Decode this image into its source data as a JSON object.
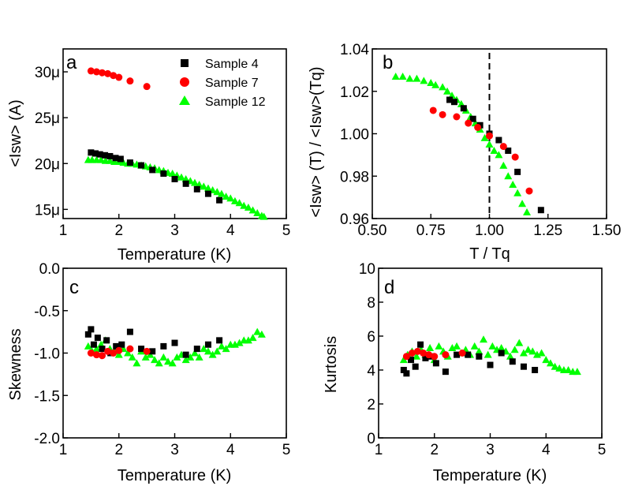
{
  "colors": {
    "sample4": "#000000",
    "sample7": "#ff0000",
    "sample12": "#00ff00",
    "axis": "#000000"
  },
  "chart_data": [
    {
      "id": "a",
      "type": "scatter",
      "panel_label": "a",
      "xlabel": "Temperature (K)",
      "ylabel": "<Isw> (A)",
      "xlim": [
        1,
        5
      ],
      "ylim": [
        14.0,
        32.5
      ],
      "xticks": [
        1,
        2,
        3,
        4,
        5
      ],
      "xtick_labels": [
        "1",
        "2",
        "3",
        "4",
        "5"
      ],
      "yticks": [
        15,
        20,
        25,
        30
      ],
      "ytick_labels": [
        "15μ",
        "20μ",
        "25μ",
        "30μ"
      ],
      "legend": [
        "Sample 4",
        "Sample 7",
        "Sample 12"
      ],
      "legend_position": "top-right",
      "series": [
        {
          "name": "Sample 4",
          "marker": "square",
          "color": "#000000",
          "x": [
            1.5,
            1.58,
            1.66,
            1.75,
            1.84,
            1.94,
            2.03,
            2.2,
            2.4,
            2.6,
            2.8,
            3.0,
            3.2,
            3.4,
            3.6,
            3.8
          ],
          "y": [
            21.2,
            21.1,
            21.0,
            20.9,
            20.8,
            20.6,
            20.5,
            20.1,
            19.8,
            19.3,
            18.9,
            18.3,
            17.8,
            17.2,
            16.7,
            16.0
          ]
        },
        {
          "name": "Sample 7",
          "marker": "circle",
          "color": "#ff0000",
          "x": [
            1.5,
            1.6,
            1.7,
            1.8,
            1.9,
            2.0,
            2.2,
            2.5
          ],
          "y": [
            30.1,
            30.0,
            29.9,
            29.8,
            29.6,
            29.4,
            29.0,
            28.4
          ]
        },
        {
          "name": "Sample 12",
          "marker": "triangle",
          "color": "#00ff00",
          "x": [
            1.45,
            1.52,
            1.6,
            1.68,
            1.76,
            1.84,
            1.92,
            2.0,
            2.08,
            2.16,
            2.24,
            2.32,
            2.4,
            2.48,
            2.56,
            2.64,
            2.72,
            2.8,
            2.88,
            2.96,
            3.04,
            3.12,
            3.2,
            3.28,
            3.36,
            3.44,
            3.52,
            3.6,
            3.68,
            3.76,
            3.84,
            3.92,
            4.0,
            4.08,
            4.16,
            4.24,
            4.32,
            4.4,
            4.48,
            4.56,
            4.6
          ],
          "y": [
            20.4,
            20.4,
            20.4,
            20.4,
            20.3,
            20.3,
            20.2,
            20.2,
            20.1,
            20.0,
            20.0,
            19.9,
            19.8,
            19.7,
            19.6,
            19.5,
            19.3,
            19.2,
            19.0,
            18.9,
            18.7,
            18.5,
            18.3,
            18.1,
            17.9,
            17.7,
            17.5,
            17.3,
            17.1,
            16.9,
            16.7,
            16.4,
            16.2,
            15.9,
            15.7,
            15.4,
            15.2,
            14.9,
            14.6,
            14.3,
            14.2
          ]
        }
      ]
    },
    {
      "id": "b",
      "type": "scatter",
      "panel_label": "b",
      "xlabel": "T / Tq",
      "ylabel": "<Isw> (T) / <Isw>(Tq)",
      "xlim": [
        0.5,
        1.5
      ],
      "ylim": [
        0.96,
        1.04
      ],
      "xticks": [
        0.5,
        0.75,
        1.0,
        1.25,
        1.5
      ],
      "xtick_labels": [
        "0.50",
        "0.75",
        "1.00",
        "1.25",
        "1.50"
      ],
      "yticks": [
        0.96,
        0.98,
        1.0,
        1.02,
        1.04
      ],
      "ytick_labels": [
        "0.96",
        "0.98",
        "1.00",
        "1.02",
        "1.04"
      ],
      "vline": 1.0,
      "series": [
        {
          "name": "Sample 4",
          "marker": "square",
          "color": "#000000",
          "x": [
            0.83,
            0.85,
            0.89,
            0.93,
            0.96,
            1.0,
            1.04,
            1.08,
            1.12,
            1.22
          ],
          "y": [
            1.016,
            1.015,
            1.012,
            1.007,
            1.004,
            1.0,
            0.997,
            0.992,
            0.982,
            0.964
          ]
        },
        {
          "name": "Sample 7",
          "marker": "circle",
          "color": "#ff0000",
          "x": [
            0.76,
            0.8,
            0.86,
            0.91,
            0.95,
            1.0,
            1.06,
            1.11,
            1.17
          ],
          "y": [
            1.011,
            1.009,
            1.008,
            1.005,
            1.003,
            0.999,
            0.994,
            0.989,
            0.973
          ]
        },
        {
          "name": "Sample 12",
          "marker": "triangle",
          "color": "#00ff00",
          "x": [
            0.6,
            0.63,
            0.66,
            0.69,
            0.72,
            0.75,
            0.77,
            0.8,
            0.82,
            0.84,
            0.86,
            0.88,
            0.9,
            0.92,
            0.94,
            0.96,
            0.98,
            1.0,
            1.02,
            1.04,
            1.06,
            1.08,
            1.1,
            1.12,
            1.14,
            1.16
          ],
          "y": [
            1.027,
            1.027,
            1.026,
            1.026,
            1.025,
            1.024,
            1.023,
            1.022,
            1.02,
            1.018,
            1.016,
            1.014,
            1.011,
            1.008,
            1.005,
            1.002,
            0.998,
            0.995,
            0.992,
            0.99,
            0.985,
            0.98,
            0.976,
            0.972,
            0.967,
            0.963
          ]
        }
      ]
    },
    {
      "id": "c",
      "type": "scatter",
      "panel_label": "c",
      "xlabel": "Temperature (K)",
      "ylabel": "Skewness",
      "xlim": [
        1,
        5
      ],
      "ylim": [
        -2.0,
        0.0
      ],
      "xticks": [
        1,
        2,
        3,
        4,
        5
      ],
      "xtick_labels": [
        "1",
        "2",
        "3",
        "4",
        "5"
      ],
      "yticks": [
        -2.0,
        -1.5,
        -1.0,
        -0.5,
        0.0
      ],
      "ytick_labels": [
        "-2.0",
        "-1.5",
        "-1.0",
        "-0.5",
        "0.0"
      ],
      "series": [
        {
          "name": "Sample 4",
          "marker": "square",
          "color": "#000000",
          "x": [
            1.45,
            1.5,
            1.55,
            1.62,
            1.7,
            1.78,
            1.85,
            1.95,
            2.05,
            2.2,
            2.4,
            2.6,
            2.8,
            3.0,
            3.2,
            3.4,
            3.6,
            3.8
          ],
          "y": [
            -0.78,
            -0.72,
            -0.9,
            -0.82,
            -0.95,
            -0.85,
            -1.0,
            -0.92,
            -0.9,
            -0.75,
            -0.95,
            -0.98,
            -0.92,
            -0.88,
            -1.02,
            -0.95,
            -0.9,
            -0.85
          ]
        },
        {
          "name": "Sample 7",
          "marker": "circle",
          "color": "#ff0000",
          "x": [
            1.5,
            1.6,
            1.7,
            1.8,
            1.9,
            2.0,
            2.2,
            2.5
          ],
          "y": [
            -1.0,
            -1.02,
            -1.03,
            -0.98,
            -1.0,
            -0.97,
            -0.95,
            -0.98
          ]
        },
        {
          "name": "Sample 12",
          "marker": "triangle",
          "color": "#00ff00",
          "x": [
            1.45,
            1.52,
            1.6,
            1.68,
            1.76,
            1.84,
            1.92,
            2.0,
            2.08,
            2.16,
            2.24,
            2.32,
            2.4,
            2.48,
            2.56,
            2.64,
            2.72,
            2.8,
            2.88,
            2.96,
            3.04,
            3.12,
            3.2,
            3.28,
            3.36,
            3.44,
            3.52,
            3.6,
            3.68,
            3.76,
            3.84,
            3.92,
            4.0,
            4.08,
            4.16,
            4.24,
            4.32,
            4.4,
            4.48,
            4.56
          ],
          "y": [
            -0.92,
            -0.98,
            -0.95,
            -0.9,
            -0.85,
            -0.95,
            -0.98,
            -1.02,
            -0.95,
            -1.0,
            -1.05,
            -1.12,
            -0.98,
            -1.05,
            -1.02,
            -1.08,
            -1.12,
            -1.05,
            -1.1,
            -1.12,
            -1.05,
            -1.02,
            -1.08,
            -1.05,
            -1.0,
            -1.05,
            -0.95,
            -0.98,
            -1.02,
            -0.98,
            -0.92,
            -0.95,
            -0.9,
            -0.9,
            -0.88,
            -0.85,
            -0.85,
            -0.82,
            -0.75,
            -0.78
          ]
        }
      ]
    },
    {
      "id": "d",
      "type": "scatter",
      "panel_label": "d",
      "xlabel": "Temperature (K)",
      "ylabel": "Kurtosis",
      "xlim": [
        1,
        5
      ],
      "ylim": [
        0,
        10
      ],
      "xticks": [
        1,
        2,
        3,
        4,
        5
      ],
      "xtick_labels": [
        "1",
        "2",
        "3",
        "4",
        "5"
      ],
      "yticks": [
        0,
        2,
        4,
        6,
        8,
        10
      ],
      "ytick_labels": [
        "0",
        "2",
        "4",
        "6",
        "8",
        "10"
      ],
      "series": [
        {
          "name": "Sample 4",
          "marker": "square",
          "color": "#000000",
          "x": [
            1.45,
            1.5,
            1.58,
            1.66,
            1.75,
            1.84,
            1.94,
            2.03,
            2.2,
            2.4,
            2.6,
            2.8,
            3.0,
            3.2,
            3.4,
            3.6,
            3.8
          ],
          "y": [
            4.0,
            3.8,
            4.6,
            4.2,
            5.5,
            4.7,
            4.8,
            4.4,
            3.9,
            4.9,
            4.9,
            4.8,
            4.3,
            5.0,
            4.5,
            4.2,
            4.0
          ]
        },
        {
          "name": "Sample 7",
          "marker": "circle",
          "color": "#ff0000",
          "x": [
            1.5,
            1.6,
            1.7,
            1.8,
            1.9,
            2.0,
            2.2,
            2.5
          ],
          "y": [
            4.8,
            5.0,
            5.1,
            5.0,
            4.9,
            4.8,
            4.9,
            5.0
          ]
        },
        {
          "name": "Sample 12",
          "marker": "triangle",
          "color": "#00ff00",
          "x": [
            1.45,
            1.52,
            1.6,
            1.68,
            1.76,
            1.84,
            1.92,
            2.0,
            2.08,
            2.16,
            2.24,
            2.32,
            2.4,
            2.48,
            2.56,
            2.64,
            2.72,
            2.8,
            2.88,
            2.96,
            3.04,
            3.12,
            3.2,
            3.28,
            3.36,
            3.44,
            3.52,
            3.6,
            3.68,
            3.76,
            3.84,
            3.92,
            4.0,
            4.08,
            4.16,
            4.24,
            4.32,
            4.4,
            4.48,
            4.56
          ],
          "y": [
            4.6,
            4.9,
            5.1,
            4.8,
            5.2,
            4.9,
            5.3,
            4.6,
            5.4,
            5.1,
            4.8,
            5.3,
            5.4,
            5.0,
            5.2,
            4.9,
            5.4,
            5.1,
            5.8,
            4.9,
            5.4,
            5.2,
            5.3,
            5.1,
            4.8,
            5.2,
            5.6,
            5.0,
            5.2,
            5.1,
            4.9,
            5.0,
            4.6,
            4.4,
            4.2,
            4.1,
            4.0,
            4.0,
            3.9,
            3.9
          ]
        }
      ]
    }
  ]
}
